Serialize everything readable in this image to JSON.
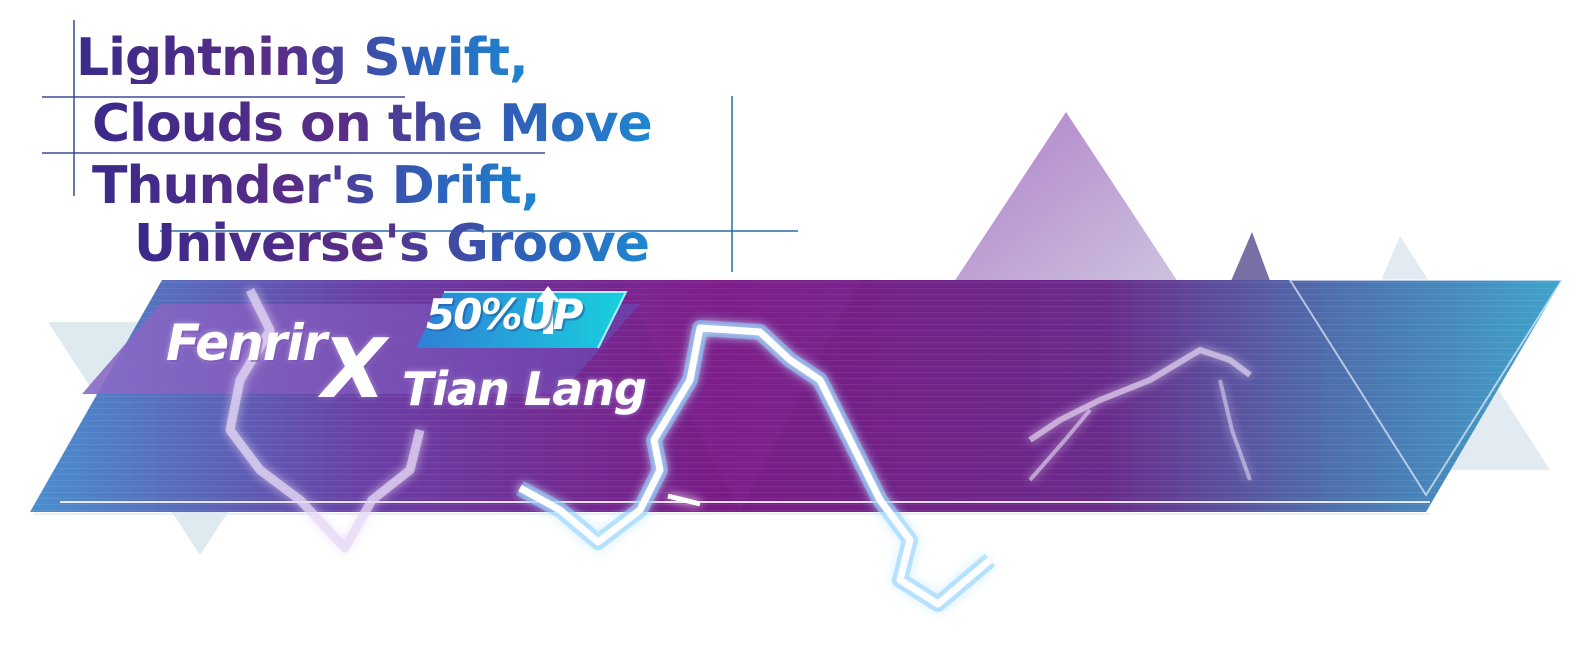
{
  "slogan": {
    "line1": "Lightning Swift,",
    "line2": "Clouds on the Move",
    "line3": "Thunder's Drift,",
    "line4": "Universe's Groove"
  },
  "banner": {
    "character_left": "Fenrir",
    "separator": "X",
    "character_right": "Tian Lang",
    "rate_up_label": "50%UP"
  },
  "colors": {
    "banner_purple": "#7a1a86",
    "banner_teal": "#3f9cc7",
    "title_start": "#3a2a8a",
    "title_end": "#1f86d0",
    "rate_badge": "#1ec6dc",
    "lightning_glow": "#7fd0ff"
  },
  "icons": {
    "rate_up_arrow": "up-arrow-icon",
    "lightning": "lightning-bolt-icon"
  }
}
